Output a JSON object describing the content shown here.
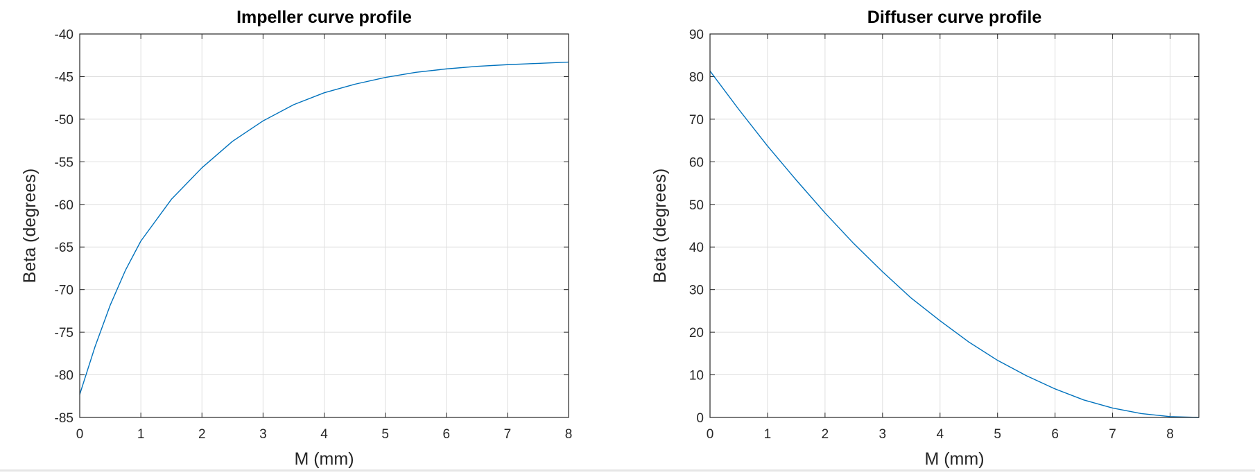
{
  "chart_data": [
    {
      "type": "line",
      "title": "Impeller curve profile",
      "xlabel": "M (mm)",
      "ylabel": "Beta (degrees)",
      "xlim": [
        0,
        8
      ],
      "ylim": [
        -85,
        -40
      ],
      "xticks": [
        0,
        1,
        2,
        3,
        4,
        5,
        6,
        7,
        8
      ],
      "yticks": [
        -85,
        -80,
        -75,
        -70,
        -65,
        -60,
        -55,
        -50,
        -45,
        -40
      ],
      "grid": true,
      "color": "#0072BD",
      "series": [
        {
          "x": [
            0,
            0.25,
            0.5,
            0.75,
            1,
            1.5,
            2,
            2.5,
            3,
            3.5,
            4,
            4.5,
            5,
            5.5,
            6,
            6.5,
            7,
            7.5,
            8
          ],
          "y": [
            -82.3,
            -76.7,
            -71.8,
            -67.7,
            -64.3,
            -59.4,
            -55.7,
            -52.6,
            -50.2,
            -48.3,
            -46.9,
            -45.9,
            -45.1,
            -44.5,
            -44.1,
            -43.8,
            -43.6,
            -43.45,
            -43.3
          ]
        }
      ]
    },
    {
      "type": "line",
      "title": "Diffuser curve profile",
      "xlabel": "M (mm)",
      "ylabel": "Beta (degrees)",
      "xlim": [
        0,
        8.5
      ],
      "ylim": [
        0,
        90
      ],
      "xticks": [
        0,
        1,
        2,
        3,
        4,
        5,
        6,
        7,
        8
      ],
      "yticks": [
        0,
        10,
        20,
        30,
        40,
        50,
        60,
        70,
        80,
        90
      ],
      "grid": true,
      "color": "#0072BD",
      "series": [
        {
          "x": [
            0,
            0.5,
            1,
            1.5,
            2,
            2.5,
            3,
            3.5,
            4,
            4.5,
            5,
            5.5,
            6,
            6.5,
            7,
            7.5,
            8,
            8.5
          ],
          "y": [
            81.3,
            72.3,
            63.7,
            55.7,
            48.0,
            40.8,
            34.2,
            28.0,
            22.7,
            17.7,
            13.4,
            9.8,
            6.7,
            4.1,
            2.2,
            0.9,
            0.2,
            0
          ]
        }
      ]
    }
  ]
}
